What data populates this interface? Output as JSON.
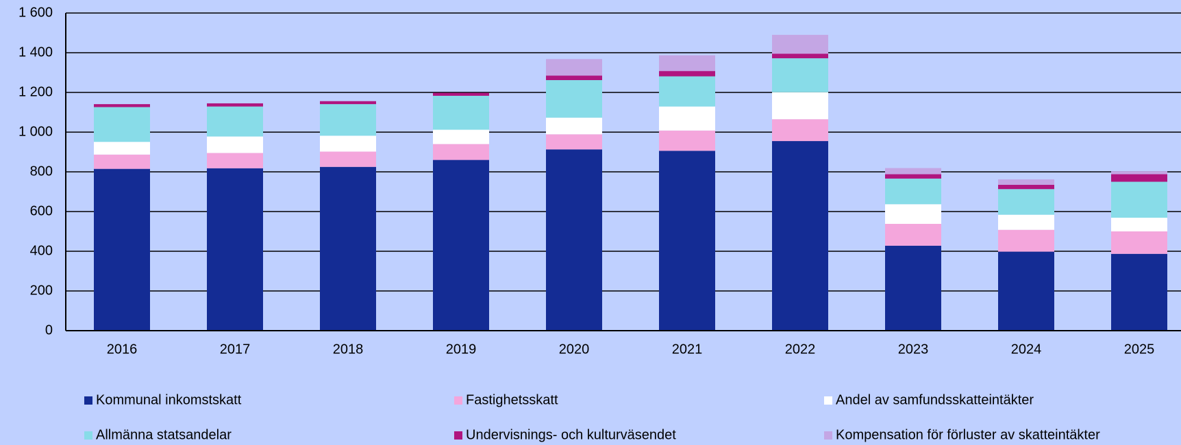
{
  "chart_data": {
    "type": "stacked_bar",
    "categories": [
      "2016",
      "2017",
      "2018",
      "2019",
      "2020",
      "2021",
      "2022",
      "2023",
      "2024",
      "2025"
    ],
    "series": [
      {
        "name": "Kommunal inkomstskatt",
        "color": "#142c94",
        "values": [
          815,
          818,
          825,
          860,
          913,
          906,
          955,
          428,
          398,
          387
        ]
      },
      {
        "name": "Fastighetsskatt",
        "color": "#f4a6dc",
        "values": [
          72,
          77,
          77,
          80,
          76,
          102,
          110,
          110,
          110,
          113
        ]
      },
      {
        "name": "Andel av samfundsskatteintäkter",
        "color": "#ffffff",
        "values": [
          64,
          83,
          80,
          72,
          84,
          121,
          136,
          99,
          76,
          69
        ]
      },
      {
        "name": "Allmänna statsandelar",
        "color": "#88dce8",
        "values": [
          175,
          151,
          159,
          171,
          189,
          152,
          171,
          129,
          129,
          181
        ]
      },
      {
        "name": "Undervisnings- och kulturväsendet",
        "color": "#b0157f",
        "values": [
          15,
          16,
          15,
          15,
          23,
          27,
          23,
          22,
          22,
          38
        ]
      },
      {
        "name": "Kompensation för förluster av skatteintäkter",
        "color": "#c4a6e4",
        "values": [
          0,
          0,
          0,
          0,
          83,
          79,
          95,
          31,
          27,
          15
        ]
      }
    ],
    "ylim": [
      0,
      1600
    ],
    "yticks": [
      0,
      200,
      400,
      600,
      800,
      {
        "value": 1000,
        "label": "1 000"
      },
      {
        "value": 1200,
        "label": "1 200"
      },
      {
        "value": 1400,
        "label": "1 400"
      },
      {
        "value": 1600,
        "label": "1 600"
      }
    ],
    "grid": true,
    "legend": "bottom"
  }
}
